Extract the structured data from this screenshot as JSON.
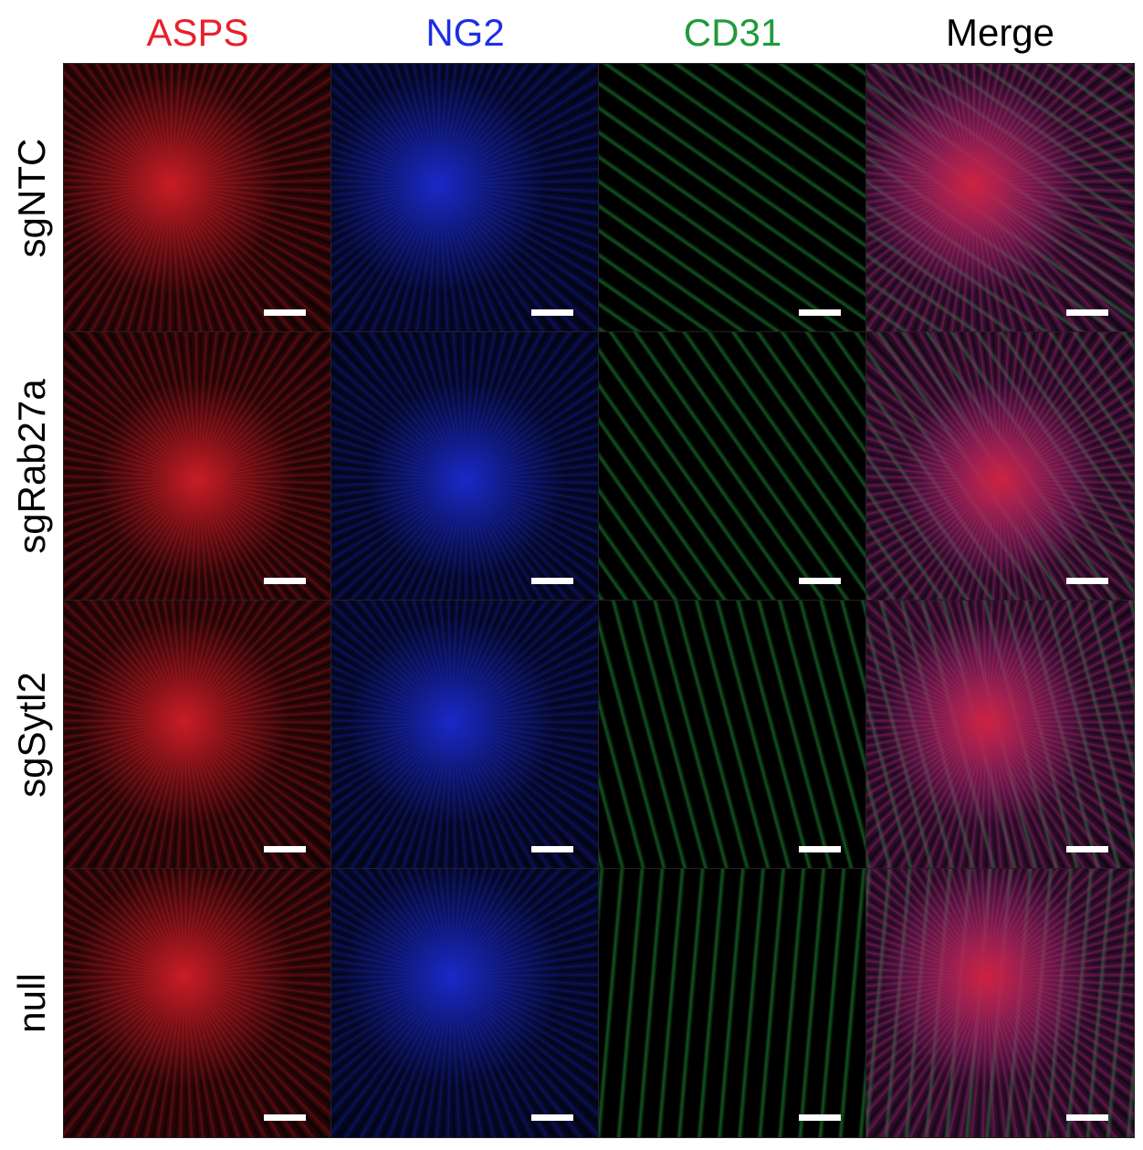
{
  "columns": [
    {
      "label": "ASPS",
      "color": "#e8202a"
    },
    {
      "label": "NG2",
      "color": "#1d2fe6"
    },
    {
      "label": "CD31",
      "color": "#1f9a3a"
    },
    {
      "label": "Merge",
      "color": "#000000"
    }
  ],
  "rows": [
    "sgNTC",
    "sgRab27a",
    "sgSytl2",
    "null"
  ]
}
